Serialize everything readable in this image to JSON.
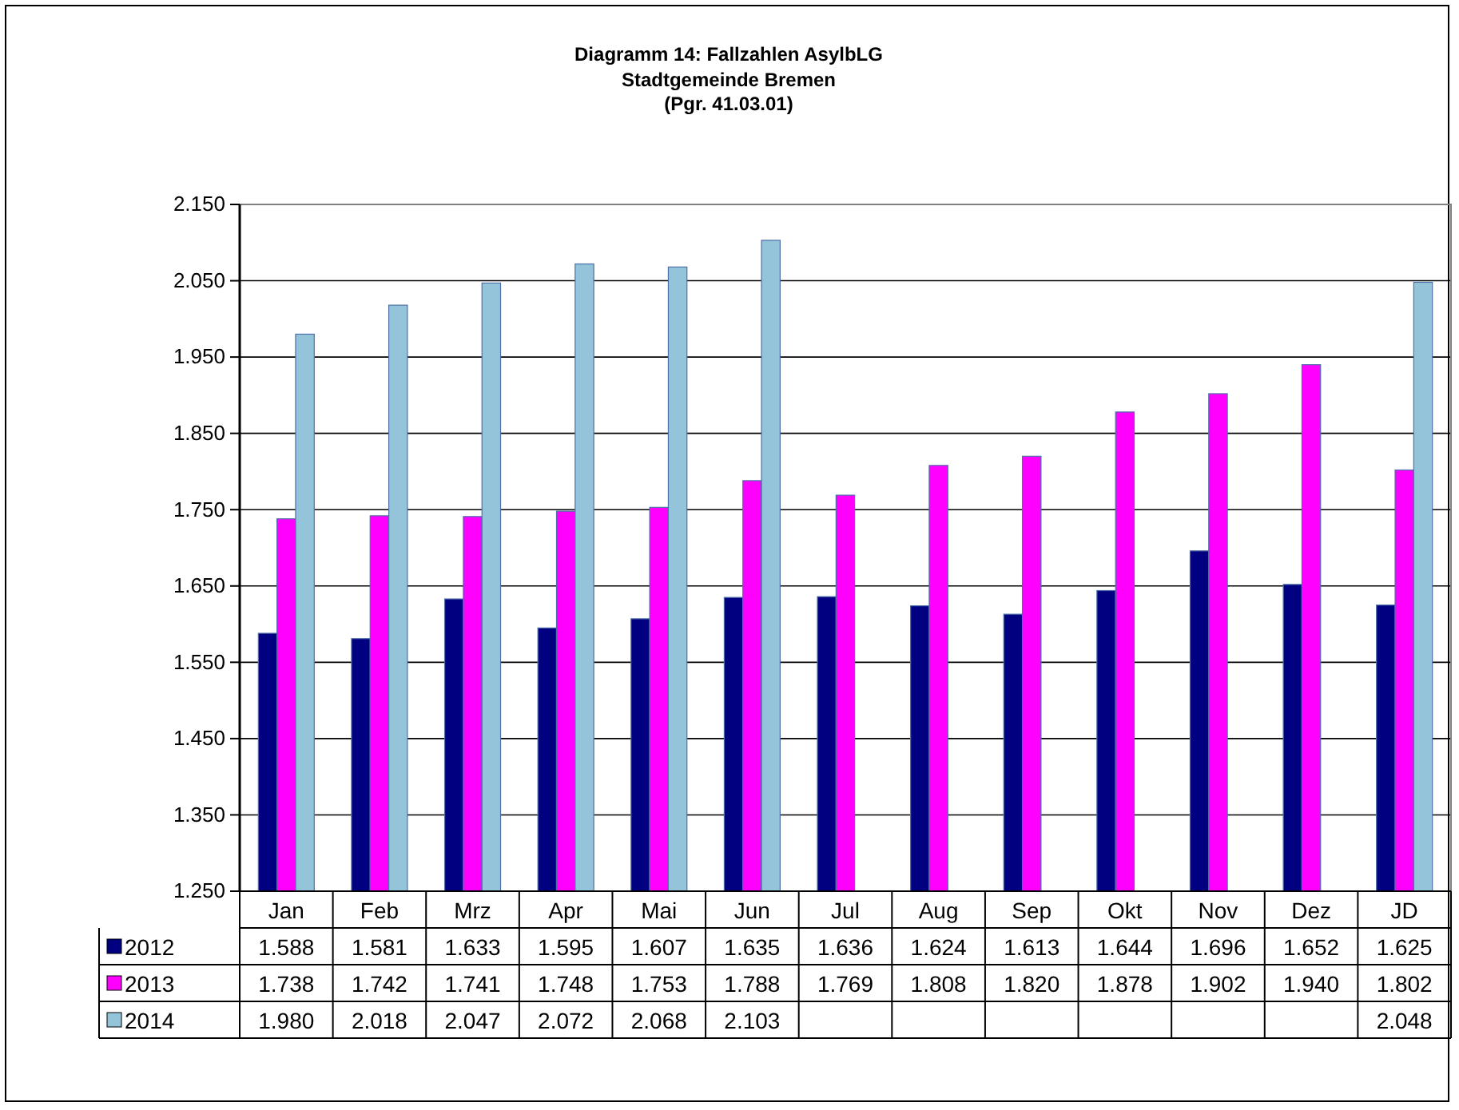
{
  "chart_data": {
    "type": "bar",
    "title": "Diagramm 14: Fallzahlen AsylbLG",
    "subtitle": "Stadtgemeinde Bremen\n(Pgr. 41.03.01)",
    "categories": [
      "Jan",
      "Feb",
      "Mrz",
      "Apr",
      "Mai",
      "Jun",
      "Jul",
      "Aug",
      "Sep",
      "Okt",
      "Nov",
      "Dez",
      "JD"
    ],
    "series": [
      {
        "name": "2012",
        "color": "#000080",
        "values": [
          1588,
          1581,
          1633,
          1595,
          1607,
          1635,
          1636,
          1624,
          1613,
          1644,
          1696,
          1652,
          1625
        ],
        "value_labels": [
          "1.588",
          "1.581",
          "1.633",
          "1.595",
          "1.607",
          "1.635",
          "1.636",
          "1.624",
          "1.613",
          "1.644",
          "1.696",
          "1.652",
          "1.625"
        ]
      },
      {
        "name": "2013",
        "color": "#ff00ff",
        "values": [
          1738,
          1742,
          1741,
          1748,
          1753,
          1788,
          1769,
          1808,
          1820,
          1878,
          1902,
          1940,
          1802
        ],
        "value_labels": [
          "1.738",
          "1.742",
          "1.741",
          "1.748",
          "1.753",
          "1.788",
          "1.769",
          "1.808",
          "1.820",
          "1.878",
          "1.902",
          "1.940",
          "1.802"
        ]
      },
      {
        "name": "2014",
        "color": "#93c4d9",
        "values": [
          1980,
          2018,
          2047,
          2072,
          2068,
          2103,
          null,
          null,
          null,
          null,
          null,
          null,
          2048
        ],
        "value_labels": [
          "1.980",
          "2.018",
          "2.047",
          "2.072",
          "2.068",
          "2.103",
          null,
          null,
          null,
          null,
          null,
          null,
          "2.048"
        ]
      }
    ],
    "ylim": [
      1250,
      2150
    ],
    "yticks": [
      {
        "value": 1250,
        "label": "1.250"
      },
      {
        "value": 1350,
        "label": "1.350"
      },
      {
        "value": 1450,
        "label": "1.450"
      },
      {
        "value": 1550,
        "label": "1.550"
      },
      {
        "value": 1650,
        "label": "1.650"
      },
      {
        "value": 1750,
        "label": "1.750"
      },
      {
        "value": 1850,
        "label": "1.850"
      },
      {
        "value": 1950,
        "label": "1.950"
      },
      {
        "value": 2050,
        "label": "2.050"
      },
      {
        "value": 2150,
        "label": "2.150"
      }
    ],
    "grid": "y",
    "legend": "bottom"
  }
}
